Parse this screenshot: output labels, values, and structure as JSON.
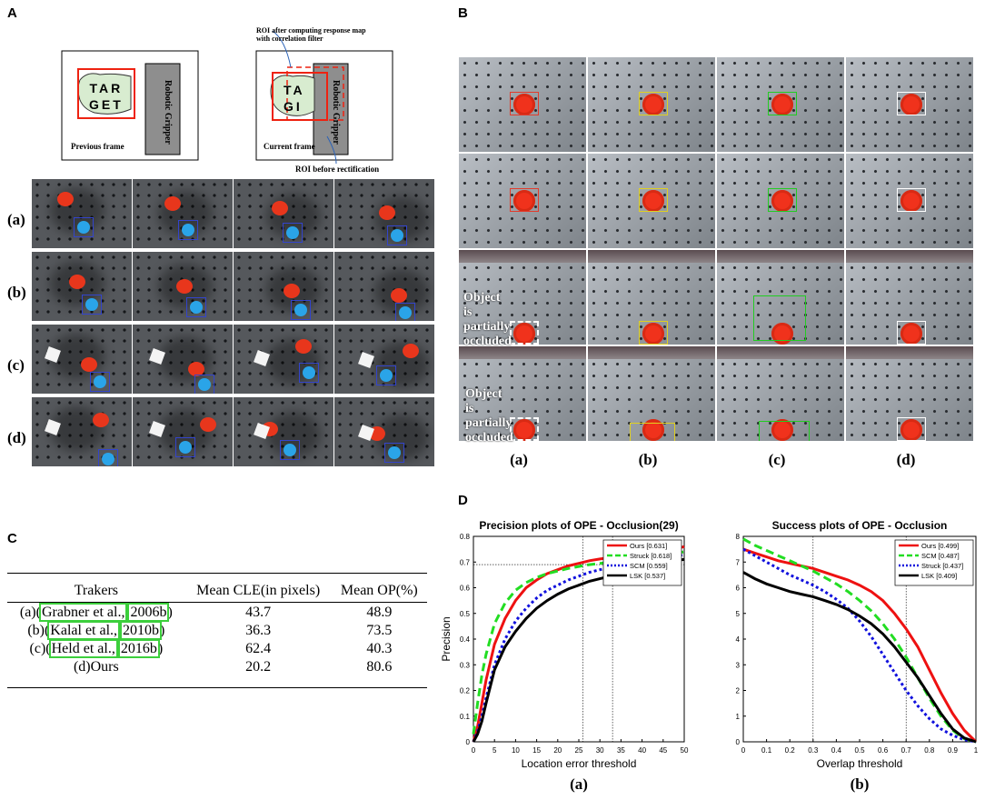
{
  "panels": {
    "A": "A",
    "B": "B",
    "C": "C",
    "D": "D"
  },
  "schematic": {
    "annotation_top": "ROI after computing response map with correlation filter",
    "annotation_bottom": "ROI before rectification",
    "previous_frame": "Previous frame",
    "current_frame": "Current frame",
    "target_line1": "TAR",
    "target_line2": "GET",
    "target_partial_line1": "TA",
    "target_partial_line2": "GI",
    "gripper": "Robotic Gripper"
  },
  "panel_a_rows": [
    "(a)",
    "(b)",
    "(c)",
    "(d)"
  ],
  "panel_b": {
    "columns": [
      "(a)",
      "(b)",
      "(c)",
      "(d)"
    ],
    "occlusion_note": "Object is partially occluded"
  },
  "table": {
    "headers": [
      "Trakers",
      "Mean CLE(in pixels)",
      "Mean OP(%)"
    ],
    "rows": [
      {
        "prefix": "(a)(",
        "cite_name": "Grabner et al.,",
        "cite_year": "2006b",
        "suffix": ")",
        "cle": "43.7",
        "op": "48.9"
      },
      {
        "prefix": "(b)(",
        "cite_name": "Kalal et al.,",
        "cite_year": "2010b",
        "suffix": ")",
        "cle": "36.3",
        "op": "73.5"
      },
      {
        "prefix": "(c)(",
        "cite_name": "Held et al.,",
        "cite_year": "2016b",
        "suffix": ")",
        "cle": "62.4",
        "op": "40.3"
      },
      {
        "prefix": "(d)Ours",
        "cite_name": "",
        "cite_year": "",
        "suffix": "",
        "cle": "20.2",
        "op": "80.6"
      }
    ]
  },
  "chart_data": [
    {
      "type": "line",
      "title": "Precision plots of OPE - Occlusion(29)",
      "xlabel": "Location error threshold",
      "ylabel": "Precision",
      "sublabel": "(a)",
      "xlim": [
        0,
        50
      ],
      "ylim": [
        0,
        0.8
      ],
      "xticks": [
        "0",
        "5",
        "10",
        "15",
        "20",
        "25",
        "30",
        "35",
        "40",
        "45",
        "50"
      ],
      "yticks": [
        "0",
        "0.1",
        "0.2",
        "0.3",
        "0.4",
        "0.5",
        "0.6",
        "0.7",
        "0.8"
      ],
      "legend_position": "top-right",
      "x": [
        0,
        1,
        2,
        3,
        5,
        7.5,
        10,
        12.5,
        15,
        17.5,
        20,
        22.5,
        25,
        27.5,
        30,
        32.5,
        35,
        37.5,
        40,
        42.5,
        45,
        47.5,
        50
      ],
      "series": [
        {
          "name": "Ours [0.631]",
          "color": "#ee1111",
          "style": "solid",
          "values": [
            0.0,
            0.06,
            0.15,
            0.24,
            0.38,
            0.48,
            0.55,
            0.6,
            0.63,
            0.655,
            0.67,
            0.685,
            0.695,
            0.705,
            0.712,
            0.718,
            0.722,
            0.728,
            0.732,
            0.736,
            0.74,
            0.75,
            0.76
          ]
        },
        {
          "name": "Struck [0.618]",
          "color": "#22dd22",
          "style": "dashed",
          "values": [
            0.03,
            0.15,
            0.26,
            0.34,
            0.46,
            0.54,
            0.59,
            0.62,
            0.64,
            0.655,
            0.665,
            0.675,
            0.683,
            0.69,
            0.695,
            0.7,
            0.705,
            0.71,
            0.715,
            0.72,
            0.725,
            0.735,
            0.74
          ]
        },
        {
          "name": "SCM [0.559]",
          "color": "#1111dd",
          "style": "dotted",
          "values": [
            0.0,
            0.04,
            0.1,
            0.17,
            0.3,
            0.4,
            0.47,
            0.52,
            0.56,
            0.59,
            0.61,
            0.63,
            0.645,
            0.66,
            0.67,
            0.68,
            0.69,
            0.7,
            0.705,
            0.71,
            0.715,
            0.72,
            0.73
          ]
        },
        {
          "name": "LSK [0.537]",
          "color": "#000000",
          "style": "solid",
          "values": [
            0.0,
            0.03,
            0.08,
            0.15,
            0.28,
            0.37,
            0.43,
            0.48,
            0.52,
            0.55,
            0.575,
            0.595,
            0.61,
            0.625,
            0.635,
            0.645,
            0.655,
            0.665,
            0.675,
            0.685,
            0.695,
            0.705,
            0.71
          ]
        }
      ],
      "guides": [
        {
          "axis": "x",
          "value": 26
        },
        {
          "axis": "x",
          "value": 33
        },
        {
          "axis": "y",
          "value": 0.69
        }
      ]
    },
    {
      "type": "line",
      "title": "Success plots of OPE - Occlusion",
      "xlabel": "Overlap threshold",
      "ylabel": "",
      "sublabel": "(b)",
      "xlim": [
        0,
        1
      ],
      "ylim": [
        0,
        8
      ],
      "xticks": [
        "0",
        "0.1",
        "0.2",
        "0.3",
        "0.4",
        "0.5",
        "0.6",
        "0.7",
        "0.8",
        "0.9",
        "1"
      ],
      "yticks": [
        "0",
        "1",
        "2",
        "3",
        "4",
        "5",
        "6",
        "7",
        "8"
      ],
      "legend_position": "top-right",
      "x": [
        0,
        0.05,
        0.1,
        0.15,
        0.2,
        0.25,
        0.3,
        0.35,
        0.4,
        0.45,
        0.5,
        0.55,
        0.6,
        0.65,
        0.7,
        0.75,
        0.8,
        0.85,
        0.9,
        0.95,
        1.0
      ],
      "series": [
        {
          "name": "Ours [0.499]",
          "color": "#ee1111",
          "style": "solid",
          "values": [
            7.5,
            7.35,
            7.2,
            7.05,
            6.95,
            6.85,
            6.75,
            6.6,
            6.45,
            6.3,
            6.1,
            5.85,
            5.5,
            5.0,
            4.4,
            3.7,
            2.8,
            1.9,
            1.1,
            0.45,
            0.0
          ]
        },
        {
          "name": "SCM [0.487]",
          "color": "#22dd22",
          "style": "dashed",
          "values": [
            7.9,
            7.65,
            7.45,
            7.25,
            7.05,
            6.85,
            6.65,
            6.4,
            6.15,
            5.85,
            5.5,
            5.1,
            4.6,
            4.0,
            3.3,
            2.5,
            1.7,
            1.0,
            0.45,
            0.12,
            0.0
          ]
        },
        {
          "name": "Struck [0.437]",
          "color": "#1111dd",
          "style": "dotted",
          "values": [
            7.5,
            7.25,
            7.0,
            6.75,
            6.5,
            6.3,
            6.1,
            5.85,
            5.55,
            5.2,
            4.7,
            4.1,
            3.4,
            2.7,
            2.0,
            1.4,
            0.9,
            0.5,
            0.25,
            0.08,
            0.0
          ]
        },
        {
          "name": "LSK [0.409]",
          "color": "#000000",
          "style": "solid",
          "values": [
            6.6,
            6.35,
            6.15,
            6.0,
            5.85,
            5.75,
            5.65,
            5.5,
            5.35,
            5.15,
            4.9,
            4.6,
            4.2,
            3.7,
            3.1,
            2.5,
            1.8,
            1.1,
            0.5,
            0.15,
            0.0
          ]
        }
      ],
      "guides": [
        {
          "axis": "x",
          "value": 0.3
        },
        {
          "axis": "x",
          "value": 0.7
        }
      ]
    }
  ]
}
